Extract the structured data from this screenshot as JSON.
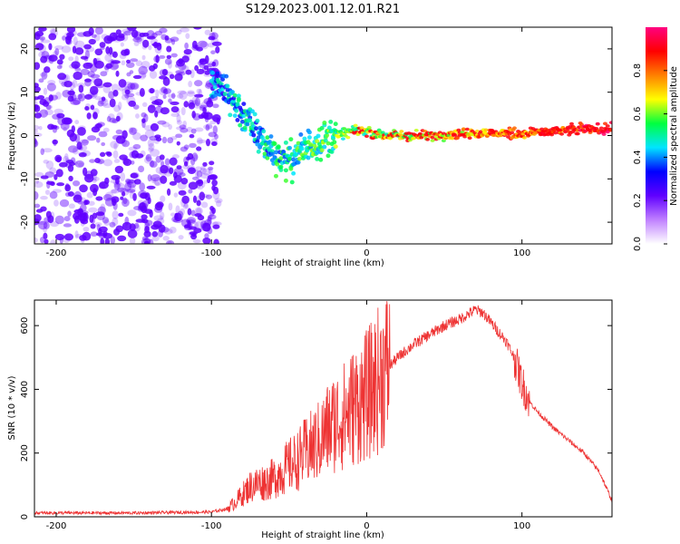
{
  "figure_title": "S129.2023.001.12.01.R21",
  "colors": {
    "snr_line": "#ee3333",
    "spectrogram_scatter": "#7a00e6",
    "axis": "#000000"
  },
  "chart_data": [
    {
      "type": "heatmap",
      "name": "spectrogram",
      "xlabel": "Height of straight line (km)",
      "ylabel": "Frequency (Hz)",
      "xlim": [
        -214,
        158
      ],
      "ylim": [
        -25,
        25
      ],
      "xticks": [
        -200,
        -100,
        0,
        100
      ],
      "xtick_labels": [
        "-200",
        "-100",
        "0",
        "100"
      ],
      "yticks": [
        -20,
        -10,
        0,
        10,
        20
      ],
      "ytick_labels": [
        "-20",
        "-10",
        "0",
        "10",
        "20"
      ],
      "colorbar": {
        "label": "Normalized spectral amplitude",
        "range": [
          0,
          1
        ],
        "ticks": [
          0.0,
          0.2,
          0.4,
          0.6,
          0.8
        ],
        "tick_labels": [
          "0.0",
          "0.2",
          "0.4",
          "0.6",
          "0.8"
        ],
        "colormap": [
          "#ffffff",
          "#c080ff",
          "#6000ff",
          "#0000ff",
          "#00e5ff",
          "#00ff40",
          "#ffff00",
          "#ff8000",
          "#ff0000",
          "#ff0080"
        ]
      },
      "ridge_track": {
        "x": [
          -100,
          -90,
          -80,
          -70,
          -60,
          -50,
          -40,
          -30,
          -20,
          -10,
          0,
          10,
          20,
          40,
          60,
          80,
          100,
          120,
          140,
          158
        ],
        "y": [
          12,
          10,
          5,
          0,
          -4,
          -6,
          -3,
          -1,
          0,
          1,
          1,
          0,
          0,
          0,
          0.5,
          0.5,
          0.5,
          1,
          1.5,
          1.5
        ]
      },
      "noise_region_x": [
        -214,
        -95
      ]
    },
    {
      "type": "line",
      "name": "snr",
      "xlabel": "Height of straight line (km)",
      "ylabel": "SNR (10 * v/v)",
      "xlim": [
        -214,
        158
      ],
      "ylim": [
        0,
        680
      ],
      "xticks": [
        -200,
        -100,
        0,
        100
      ],
      "xtick_labels": [
        "-200",
        "-100",
        "0",
        "100"
      ],
      "yticks": [
        0,
        200,
        400,
        600
      ],
      "ytick_labels": [
        "0",
        "200",
        "400",
        "600"
      ],
      "series": [
        {
          "name": "SNR",
          "x": [
            -214,
            -200,
            -150,
            -100,
            -90,
            -85,
            -80,
            -75,
            -70,
            -65,
            -60,
            -55,
            -50,
            -45,
            -40,
            -35,
            -30,
            -25,
            -20,
            -15,
            -10,
            -5,
            0,
            5,
            10,
            20,
            30,
            40,
            50,
            60,
            70,
            75,
            80,
            90,
            95,
            100,
            105,
            110,
            120,
            130,
            140,
            150,
            158
          ],
          "y": [
            12,
            12,
            12,
            15,
            25,
            45,
            70,
            95,
            105,
            110,
            120,
            140,
            160,
            175,
            200,
            220,
            240,
            275,
            300,
            315,
            340,
            360,
            380,
            410,
            450,
            500,
            540,
            570,
            600,
            620,
            650,
            640,
            610,
            550,
            500,
            420,
            360,
            330,
            280,
            240,
            200,
            140,
            50
          ]
        }
      ]
    }
  ]
}
